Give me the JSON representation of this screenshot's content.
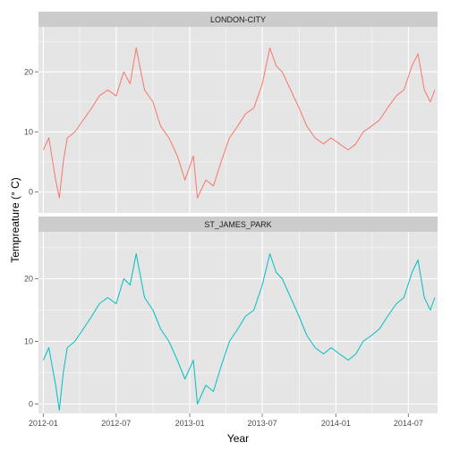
{
  "chart_data": {
    "type": "line",
    "xlabel": "Year",
    "ylabel": "Tempreature (° C)",
    "x_range": [
      "2011-12-20",
      "2014-09-12"
    ],
    "x_ticks": [
      "2012-01",
      "2012-07",
      "2013-01",
      "2013-07",
      "2014-01",
      "2014-07"
    ],
    "grid": true,
    "legend": "none",
    "panels": [
      {
        "label": "LONDON-CITY",
        "color": "#F8766D",
        "ylim": [
          -3.5,
          27.5
        ],
        "y_ticks": [
          0,
          10,
          20
        ],
        "series": {
          "name": "LONDON-CITY",
          "x": [
            "2012-01-01",
            "2012-01-15",
            "2012-02-01",
            "2012-02-10",
            "2012-02-20",
            "2012-03-01",
            "2012-03-20",
            "2012-04-10",
            "2012-05-01",
            "2012-05-20",
            "2012-06-10",
            "2012-07-01",
            "2012-07-20",
            "2012-08-05",
            "2012-08-20",
            "2012-09-10",
            "2012-10-01",
            "2012-10-20",
            "2012-11-10",
            "2012-12-01",
            "2012-12-20",
            "2013-01-10",
            "2013-01-20",
            "2013-02-10",
            "2013-03-01",
            "2013-03-20",
            "2013-04-10",
            "2013-05-01",
            "2013-05-20",
            "2013-06-10",
            "2013-07-01",
            "2013-07-20",
            "2013-08-05",
            "2013-08-20",
            "2013-09-10",
            "2013-10-01",
            "2013-10-20",
            "2013-11-10",
            "2013-12-01",
            "2013-12-20",
            "2014-01-10",
            "2014-02-01",
            "2014-02-20",
            "2014-03-10",
            "2014-04-01",
            "2014-04-20",
            "2014-05-10",
            "2014-06-01",
            "2014-06-20",
            "2014-07-10",
            "2014-07-25",
            "2014-08-10",
            "2014-08-25",
            "2014-09-05"
          ],
          "values": [
            7,
            9,
            2,
            -1,
            5,
            9,
            10,
            12,
            14,
            16,
            17,
            16,
            20,
            18,
            24,
            17,
            15,
            11,
            9,
            6,
            2,
            6,
            -1,
            2,
            1,
            5,
            9,
            11,
            13,
            14,
            18,
            24,
            21,
            20,
            17,
            14,
            11,
            9,
            8,
            9,
            8,
            7,
            8,
            10,
            11,
            12,
            14,
            16,
            17,
            21,
            23,
            17,
            15,
            17
          ]
        }
      },
      {
        "label": "ST_JAMES_PARK",
        "color": "#00BFC4",
        "ylim": [
          -1.5,
          27.5
        ],
        "y_ticks": [
          0,
          10,
          20
        ],
        "series": {
          "name": "ST_JAMES_PARK",
          "x": [
            "2012-01-01",
            "2012-01-15",
            "2012-02-01",
            "2012-02-10",
            "2012-02-20",
            "2012-03-01",
            "2012-03-20",
            "2012-04-10",
            "2012-05-01",
            "2012-05-20",
            "2012-06-10",
            "2012-07-01",
            "2012-07-20",
            "2012-08-05",
            "2012-08-20",
            "2012-09-10",
            "2012-10-01",
            "2012-10-20",
            "2012-11-10",
            "2012-12-01",
            "2012-12-20",
            "2013-01-10",
            "2013-01-20",
            "2013-02-10",
            "2013-03-01",
            "2013-03-20",
            "2013-04-10",
            "2013-05-01",
            "2013-05-20",
            "2013-06-10",
            "2013-07-01",
            "2013-07-20",
            "2013-08-05",
            "2013-08-20",
            "2013-09-10",
            "2013-10-01",
            "2013-10-20",
            "2013-11-10",
            "2013-12-01",
            "2013-12-20",
            "2014-01-10",
            "2014-02-01",
            "2014-02-20",
            "2014-03-10",
            "2014-04-01",
            "2014-04-20",
            "2014-05-10",
            "2014-06-01",
            "2014-06-20",
            "2014-07-10",
            "2014-07-25",
            "2014-08-10",
            "2014-08-25",
            "2014-09-05"
          ],
          "values": [
            7,
            9,
            3,
            -1,
            5,
            9,
            10,
            12,
            14,
            16,
            17,
            16,
            20,
            19,
            24,
            17,
            15,
            12,
            10,
            7,
            4,
            7,
            0,
            3,
            2,
            6,
            10,
            12,
            14,
            15,
            19,
            24,
            21,
            20,
            17,
            14,
            11,
            9,
            8,
            9,
            8,
            7,
            8,
            10,
            11,
            12,
            14,
            16,
            17,
            21,
            23,
            17,
            15,
            17
          ]
        }
      }
    ]
  }
}
